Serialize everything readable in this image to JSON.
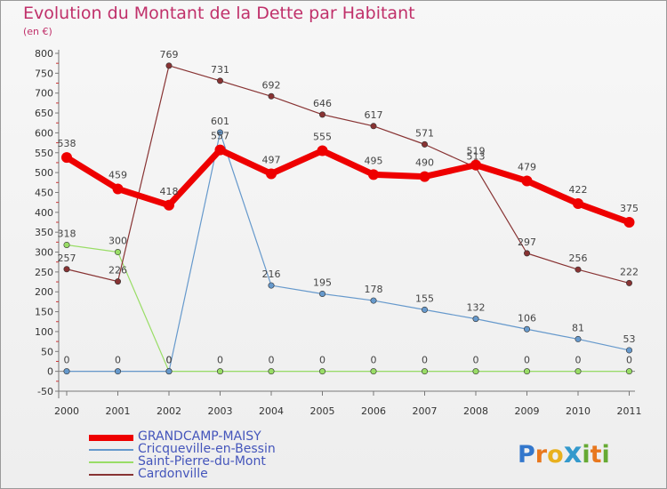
{
  "header": {
    "title": "Evolution du Montant de la Dette par Habitant",
    "unit": "(en €)"
  },
  "logo": {
    "letters": [
      "P",
      "r",
      "o",
      "x",
      "i",
      "t",
      "i"
    ],
    "colors": [
      "#3377cc",
      "#e8781e",
      "#e8b01e",
      "#3399cc",
      "#66aa33",
      "#e8781e",
      "#66aa33"
    ]
  },
  "chart_data": {
    "type": "line",
    "title": "Evolution du Montant de la Dette par Habitant",
    "subtitle": "(en €)",
    "x": [
      "2000",
      "2001",
      "2002",
      "2003",
      "2004",
      "2005",
      "2006",
      "2007",
      "2008",
      "2009",
      "2010",
      "2011"
    ],
    "ylim": [
      -50,
      800
    ],
    "yticks": [
      -50,
      0,
      50,
      100,
      150,
      200,
      250,
      300,
      350,
      400,
      450,
      500,
      550,
      600,
      650,
      700,
      750,
      800
    ],
    "grid": false,
    "legend_position": "bottom-left",
    "series": [
      {
        "name": "GRANDCAMP-MAISY",
        "color": "#ee0000",
        "values": [
          538,
          459,
          418,
          557,
          497,
          555,
          495,
          490,
          519,
          479,
          422,
          375
        ]
      },
      {
        "name": "Cricqueville-en-Bessin",
        "color": "#6699cc",
        "values": [
          0,
          0,
          0,
          601,
          216,
          195,
          178,
          155,
          132,
          106,
          81,
          53
        ]
      },
      {
        "name": "Saint-Pierre-du-Mont",
        "color": "#99dd66",
        "values": [
          318,
          300,
          0,
          0,
          0,
          0,
          0,
          0,
          0,
          0,
          0,
          0
        ]
      },
      {
        "name": "Cardonville",
        "color": "#883333",
        "values": [
          257,
          226,
          769,
          731,
          692,
          646,
          617,
          571,
          513,
          297,
          256,
          222
        ]
      }
    ]
  }
}
